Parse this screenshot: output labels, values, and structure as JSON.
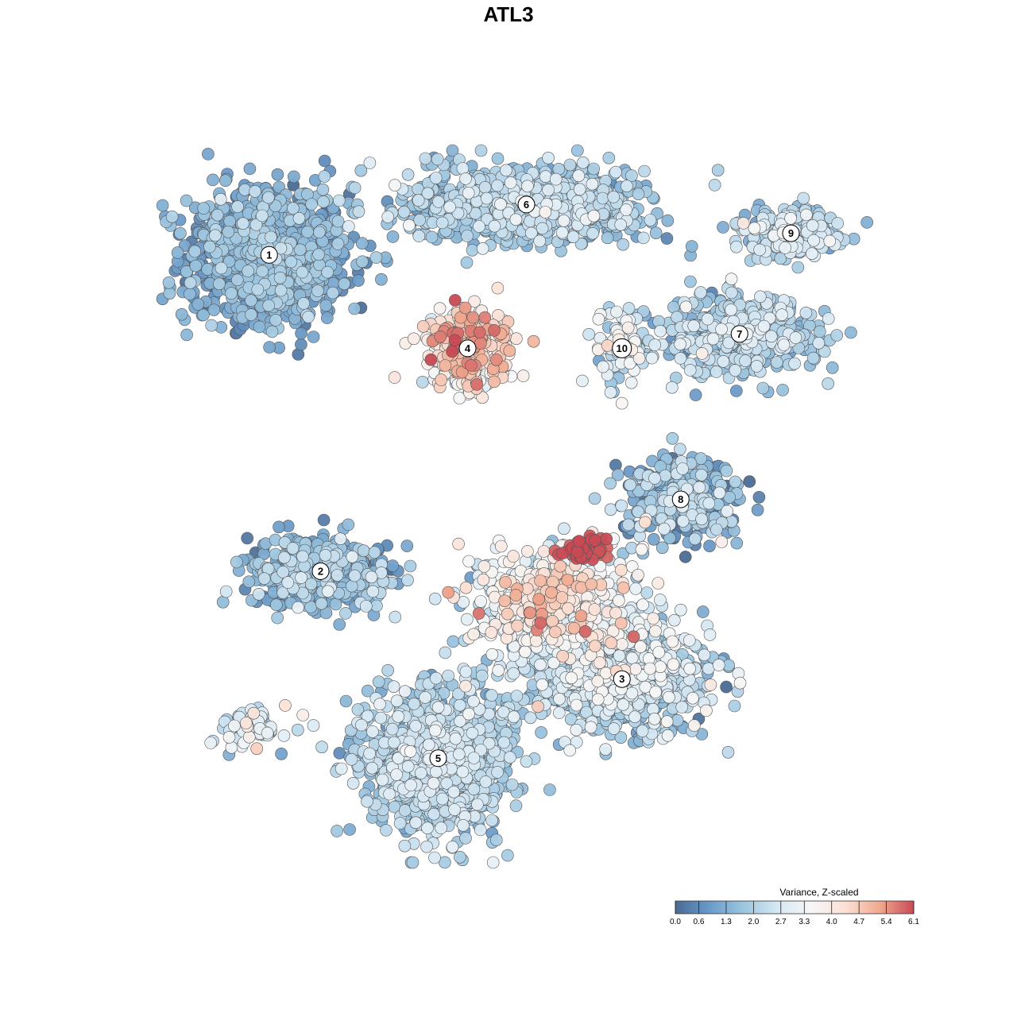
{
  "chart_data": {
    "type": "scatter",
    "title": "ATL3",
    "xlabel": "",
    "ylabel": "",
    "grid": false,
    "colormap": [
      "#4a6b94",
      "#6a9ac8",
      "#9cc5df",
      "#d6e8f3",
      "#f7f7f7",
      "#fbe0d4",
      "#f0a98f",
      "#c84a55"
    ],
    "legend": {
      "title": "Variance, Z-scaled",
      "placement": "bottom-right",
      "range": [
        0.0,
        6.1
      ],
      "ticks": [
        "0.0",
        "0.6",
        "1.3",
        "2.0",
        "2.7",
        "3.3",
        "4.0",
        "4.7",
        "5.4",
        "6.1"
      ]
    },
    "xlim": [
      0,
      100
    ],
    "ylim": [
      0,
      100
    ],
    "clusters": [
      {
        "label": "1",
        "x": 15,
        "y": 85,
        "sx": 10,
        "sy": 8.5,
        "n": 1100,
        "mean": 1.2,
        "sd": 0.5
      },
      {
        "label": "2",
        "x": 22,
        "y": 41,
        "sx": 9,
        "sy": 4.5,
        "n": 420,
        "mean": 1.4,
        "sd": 0.6
      },
      {
        "label": "3",
        "x": 63,
        "y": 26,
        "sx": 11,
        "sy": 6,
        "n": 900,
        "mean": 2.1,
        "sd": 0.7
      },
      {
        "label": "4",
        "x": 42,
        "y": 72,
        "sx": 5,
        "sy": 5,
        "n": 380,
        "mean": 3.9,
        "sd": 0.9
      },
      {
        "label": "5",
        "x": 38,
        "y": 15,
        "sx": 9,
        "sy": 9,
        "n": 1100,
        "mean": 2.0,
        "sd": 0.5
      },
      {
        "label": "6",
        "x": 50,
        "y": 92,
        "sx": 15,
        "sy": 4.5,
        "n": 1000,
        "mean": 1.8,
        "sd": 0.5
      },
      {
        "label": "7",
        "x": 79,
        "y": 74,
        "sx": 9,
        "sy": 5,
        "n": 520,
        "mean": 1.9,
        "sd": 0.6
      },
      {
        "label": "8",
        "x": 71,
        "y": 51,
        "sx": 7,
        "sy": 5,
        "n": 360,
        "mean": 1.3,
        "sd": 0.8
      },
      {
        "label": "9",
        "x": 86,
        "y": 88,
        "sx": 6,
        "sy": 3.2,
        "n": 220,
        "mean": 2.1,
        "sd": 0.6
      },
      {
        "label": "10",
        "x": 63,
        "y": 72,
        "sx": 3.5,
        "sy": 4.5,
        "n": 110,
        "mean": 2.5,
        "sd": 0.8
      },
      {
        "label": "",
        "x": 54,
        "y": 37,
        "sx": 10,
        "sy": 6,
        "n": 700,
        "mean": 3.2,
        "sd": 0.9
      },
      {
        "label": "",
        "x": 58,
        "y": 44,
        "sx": 2.2,
        "sy": 1.6,
        "n": 70,
        "mean": 6.0,
        "sd": 0.15
      },
      {
        "label": "",
        "x": 13,
        "y": 19,
        "sx": 4,
        "sy": 2.5,
        "n": 80,
        "mean": 2.6,
        "sd": 0.7
      }
    ]
  }
}
